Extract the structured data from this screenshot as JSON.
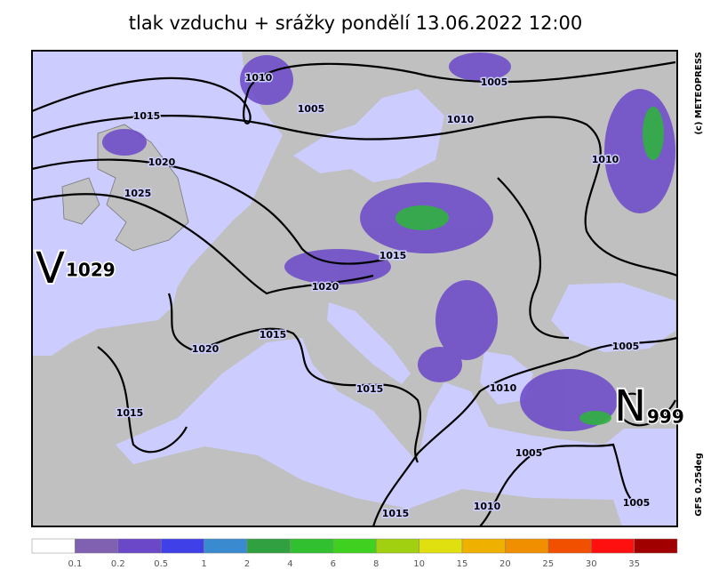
{
  "title": "tlak vzduchu + srážky pondělí 13.06.2022 12:00",
  "copyright": "(c) METEOPRESS",
  "model": "GFS 0.25deg",
  "pressure_centers": [
    {
      "letter": "V",
      "value": "1029"
    },
    {
      "letter": "N",
      "value": "999"
    }
  ],
  "isobar_labels": [
    "1010",
    "1005",
    "1015",
    "1005",
    "1010",
    "1020",
    "1010",
    "1025",
    "1015",
    "1020",
    "1015",
    "1020",
    "1005",
    "1015",
    "1010",
    "1015",
    "1005",
    "1015",
    "1010",
    "1005"
  ],
  "legend": {
    "labels": [
      "0.1",
      "0.2",
      "0.5",
      "1",
      "2",
      "4",
      "6",
      "8",
      "10",
      "15",
      "20",
      "25",
      "30",
      "35"
    ],
    "colors": [
      "#ffffff",
      "#8060b0",
      "#6a48c8",
      "#4040e8",
      "#3a8ad0",
      "#30a040",
      "#30c030",
      "#40d020",
      "#a0d010",
      "#e0e010",
      "#f0b000",
      "#f09000",
      "#f05000",
      "#ff1010",
      "#a00000"
    ]
  }
}
